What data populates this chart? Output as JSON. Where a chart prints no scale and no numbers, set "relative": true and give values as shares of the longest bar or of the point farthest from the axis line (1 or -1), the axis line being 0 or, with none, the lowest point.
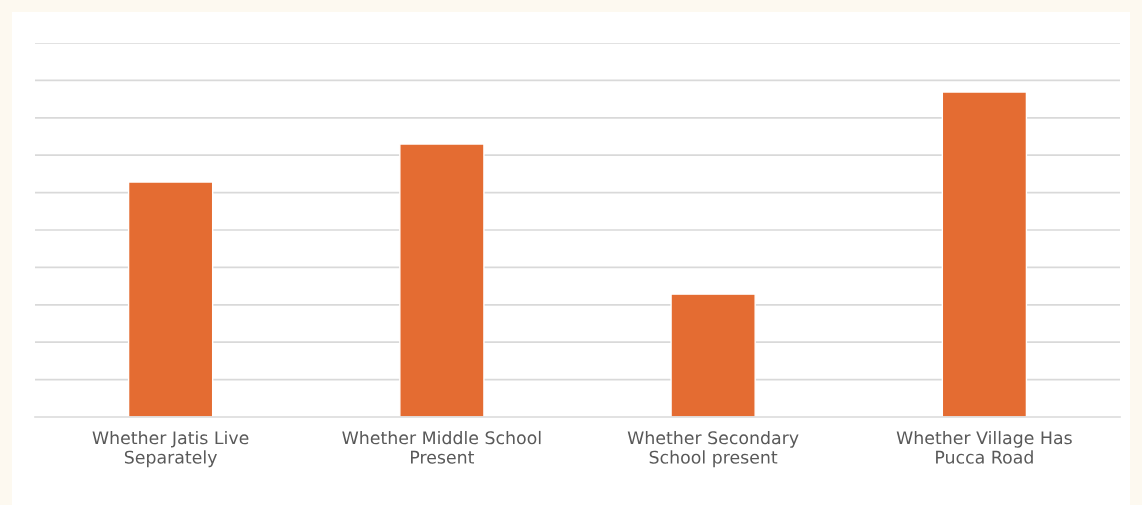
{
  "chart_data": {
    "type": "bar",
    "relative": true,
    "categories": [
      "Whether Jatis Live\nSeparately",
      "Whether Middle School\nPresent",
      "Whether Secondary\nSchool present",
      "Whether Village Has\nPucca Road"
    ],
    "values": [
      0.723,
      0.84,
      0.378,
      1.0
    ],
    "color": "#e46c32",
    "grid": "y"
  }
}
